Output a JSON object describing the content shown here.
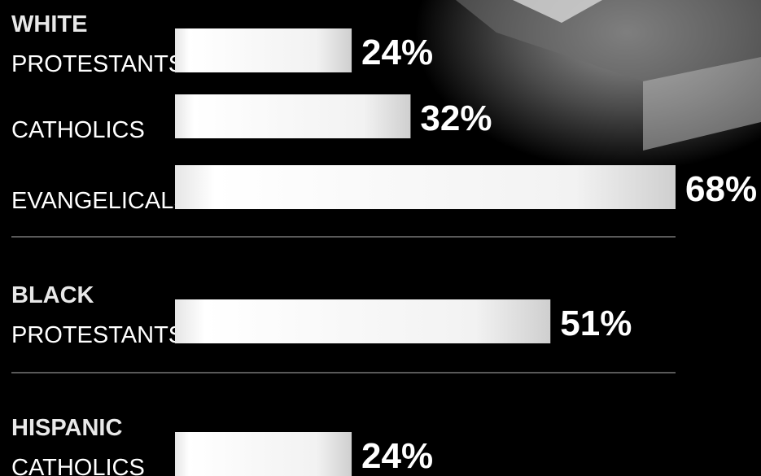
{
  "chart_data": {
    "type": "bar",
    "orientation": "horizontal",
    "groups": [
      {
        "name": "WHITE",
        "categories": [
          "PROTESTANTS",
          "CATHOLICS",
          "EVANGELICALS"
        ],
        "values": [
          24,
          32,
          68
        ],
        "value_labels": [
          "24%",
          "32%",
          "68%"
        ]
      },
      {
        "name": "BLACK",
        "categories": [
          "PROTESTANTS"
        ],
        "values": [
          51
        ],
        "value_labels": [
          "51%"
        ]
      },
      {
        "name": "HISPANIC",
        "categories": [
          "CATHOLICS"
        ],
        "values": [
          24
        ],
        "value_labels": [
          "24%"
        ]
      }
    ]
  }
}
